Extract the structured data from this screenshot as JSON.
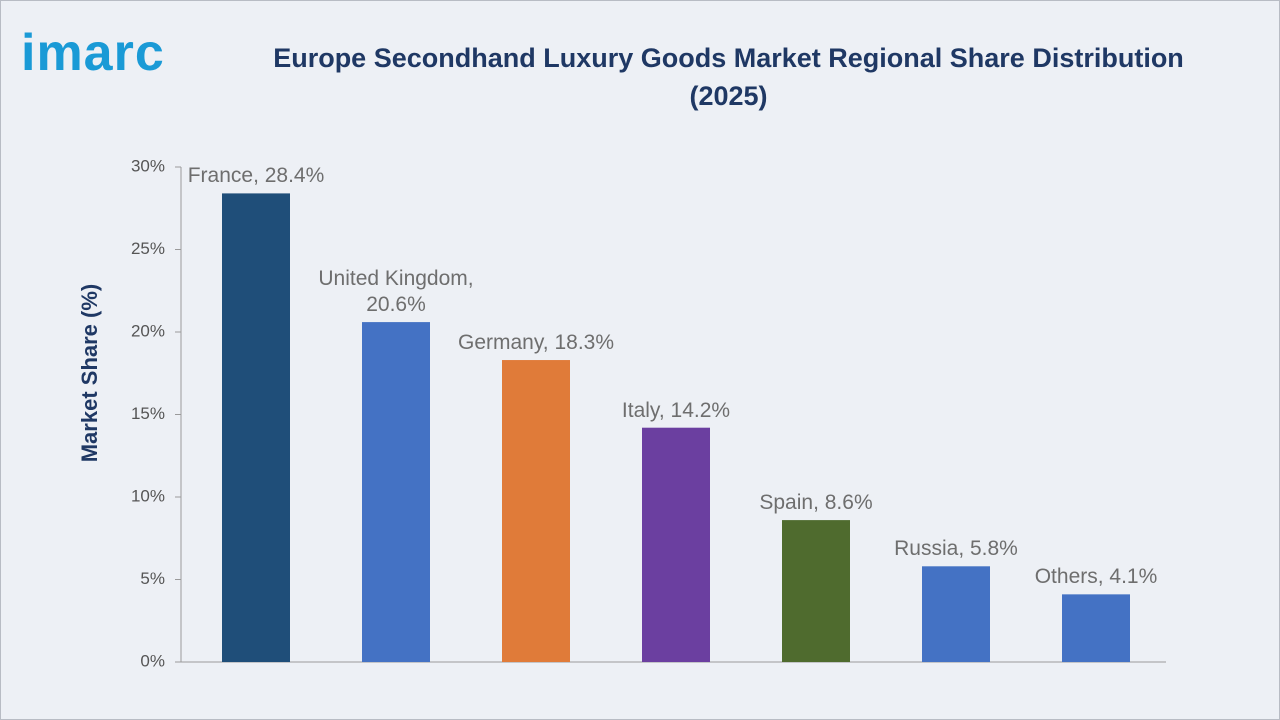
{
  "logo": "imarc",
  "chart_data": {
    "type": "bar",
    "title": "Europe Secondhand Luxury Goods Market Regional Share Distribution (2025)",
    "y_label": "Market Share (%)",
    "values": [
      28.4,
      20.6,
      18.3,
      14.2,
      8.6,
      5.8,
      4.1
    ],
    "value_labels": [
      "France, 28.4%",
      "United Kingdom, 20.6%",
      "Germany, 18.3%",
      "Italy, 14.2%",
      "Spain, 8.6%",
      "Russia, 5.8%",
      "Others, 4.1%"
    ],
    "colors": [
      "#1f4e79",
      "#4472c4",
      "#e07b39",
      "#6b3fa0",
      "#4f6b2e",
      "#4472c4",
      "#4472c4"
    ],
    "ylim": [
      0,
      30
    ],
    "yticks": [
      {
        "value": 0,
        "label": "0%"
      },
      {
        "value": 5,
        "label": "5%"
      },
      {
        "value": 10,
        "label": "10%"
      },
      {
        "value": 15,
        "label": "15%"
      },
      {
        "value": 20,
        "label": "20%"
      },
      {
        "value": 25,
        "label": "25%"
      },
      {
        "value": 30,
        "label": "30%"
      }
    ],
    "grid": false
  }
}
